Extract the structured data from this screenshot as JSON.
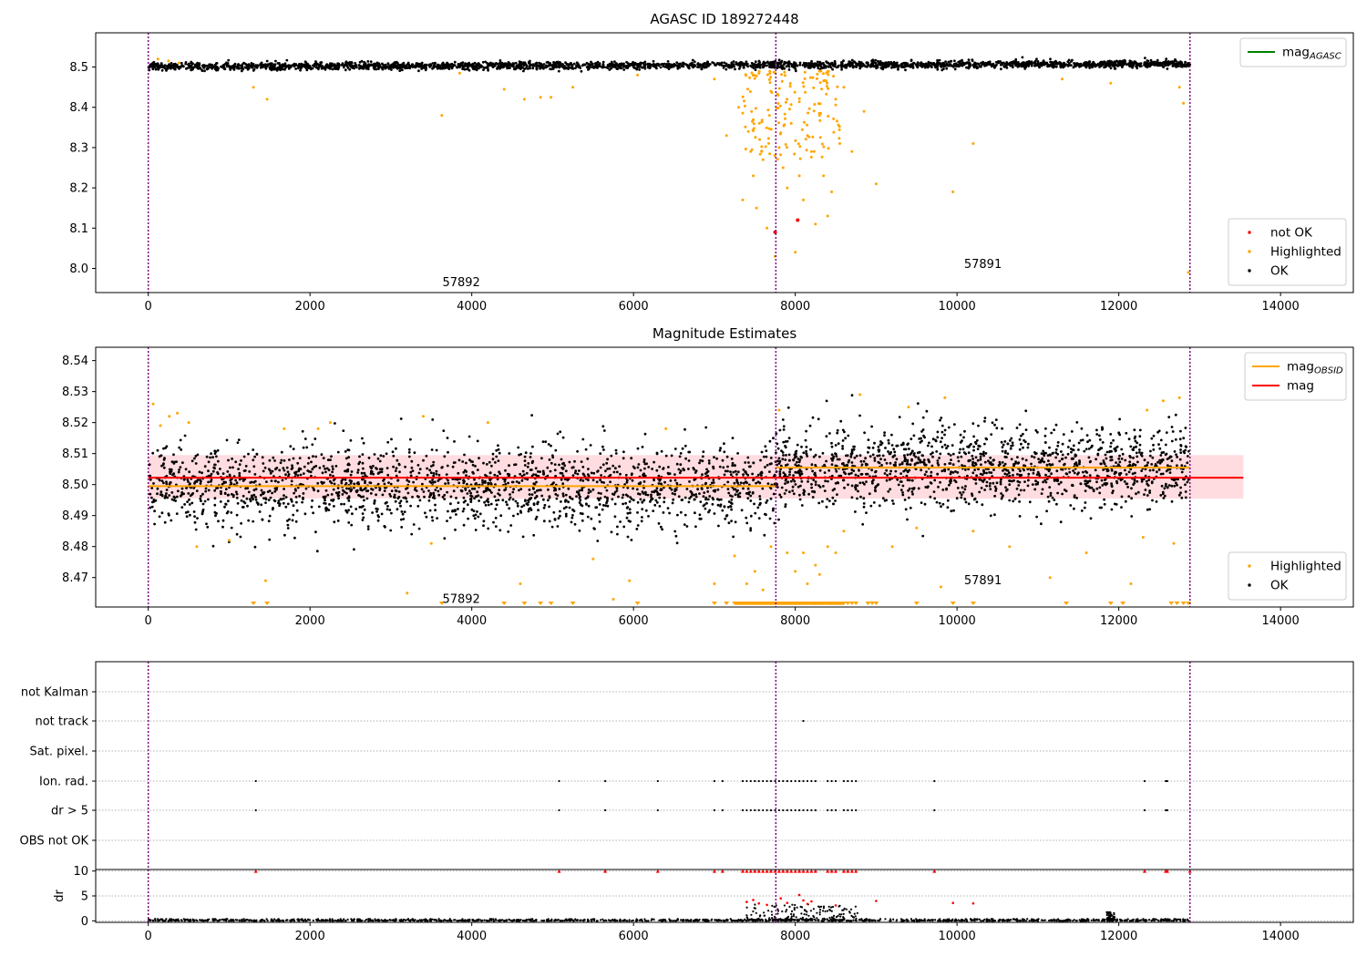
{
  "figure": {
    "colors": {
      "ok": "#000000",
      "highlighted": "#ffa500",
      "not_ok": "#ff0000",
      "agasc_line": "#008000",
      "obsid_line": "#ffa500",
      "mag_line": "#ff0000",
      "mag_band": "#ffc0c6",
      "obs_boundary": "#800080",
      "grid": "#b0b0b0"
    }
  },
  "chart_data": [
    {
      "id": "top",
      "type": "scatter",
      "title": "AGASC ID 189272448",
      "xlim": [
        -650,
        14900
      ],
      "ylim": [
        7.94,
        8.585
      ],
      "xticks": [
        0,
        2000,
        4000,
        6000,
        8000,
        10000,
        12000,
        14000
      ],
      "xtick_labels": [
        "0",
        "2000",
        "4000",
        "6000",
        "8000",
        "10000",
        "12000",
        "14000"
      ],
      "yticks": [
        8.0,
        8.1,
        8.2,
        8.3,
        8.4,
        8.5
      ],
      "ytick_labels": [
        "8.0",
        "8.1",
        "8.2",
        "8.3",
        "8.4",
        "8.5"
      ],
      "obs_boundaries": [
        0,
        7760,
        12880
      ],
      "obs_labels": [
        {
          "text": "57892",
          "x": 3870,
          "y": 7.965
        },
        {
          "text": "57891",
          "x": 10320,
          "y": 8.01
        }
      ],
      "lines": [],
      "series": [
        {
          "name": "OK",
          "kind": "ok_band",
          "x_range": [
            0,
            12880
          ],
          "center": [
            8.501,
            8.508
          ],
          "spread": 0.009
        },
        {
          "name": "Highlighted",
          "kind": "highlighted",
          "points": [
            [
              120,
              8.52
            ],
            [
              250,
              8.515
            ],
            [
              380,
              8.51
            ],
            [
              1300,
              8.45
            ],
            [
              1470,
              8.42
            ],
            [
              3630,
              8.38
            ],
            [
              3850,
              8.485
            ],
            [
              4400,
              8.445
            ],
            [
              4650,
              8.42
            ],
            [
              4850,
              8.425
            ],
            [
              4980,
              8.425
            ],
            [
              5250,
              8.45
            ],
            [
              6050,
              8.48
            ],
            [
              7000,
              8.47
            ],
            [
              7150,
              8.33
            ],
            [
              7300,
              8.4
            ],
            [
              7350,
              8.17
            ],
            [
              7420,
              8.34
            ],
            [
              7450,
              8.29
            ],
            [
              7480,
              8.23
            ],
            [
              7520,
              8.15
            ],
            [
              7560,
              8.32
            ],
            [
              7600,
              8.27
            ],
            [
              7650,
              8.1
            ],
            [
              7680,
              8.38
            ],
            [
              7700,
              8.44
            ],
            [
              7750,
              8.03
            ],
            [
              7800,
              8.3
            ],
            [
              7850,
              8.25
            ],
            [
              7900,
              8.2
            ],
            [
              7950,
              8.36
            ],
            [
              8000,
              8.04
            ],
            [
              8050,
              8.23
            ],
            [
              8100,
              8.17
            ],
            [
              8150,
              8.33
            ],
            [
              8200,
              8.29
            ],
            [
              8250,
              8.11
            ],
            [
              8300,
              8.38
            ],
            [
              8350,
              8.23
            ],
            [
              8400,
              8.13
            ],
            [
              8450,
              8.19
            ],
            [
              8500,
              8.42
            ],
            [
              8550,
              8.31
            ],
            [
              8600,
              8.45
            ],
            [
              8700,
              8.29
            ],
            [
              8850,
              8.39
            ],
            [
              9000,
              8.21
            ],
            [
              9950,
              8.19
            ],
            [
              10200,
              8.31
            ],
            [
              11300,
              8.47
            ],
            [
              11900,
              8.46
            ],
            [
              12750,
              8.45
            ],
            [
              12800,
              8.41
            ],
            [
              12860,
              7.99
            ]
          ],
          "cluster": {
            "x_range": [
              7350,
              8550
            ],
            "y_range": [
              8.27,
              8.49
            ],
            "count": 150
          }
        },
        {
          "name": "not OK",
          "kind": "not_ok",
          "points": [
            [
              7750,
              8.09
            ],
            [
              8030,
              8.12
            ]
          ]
        }
      ],
      "legends": [
        {
          "position": "top-right",
          "entries": [
            {
              "label": "mag",
              "sub": "AGASC",
              "marker": "line",
              "color_key": "agasc_line"
            }
          ]
        },
        {
          "position": "lower-right",
          "entries": [
            {
              "label": "not OK",
              "marker": "dot",
              "color_key": "not_ok"
            },
            {
              "label": "Highlighted",
              "marker": "dot",
              "color_key": "highlighted"
            },
            {
              "label": "OK",
              "marker": "dot",
              "color_key": "ok"
            }
          ]
        }
      ]
    },
    {
      "id": "middle",
      "type": "scatter",
      "title": "Magnitude Estimates",
      "xlim": [
        -650,
        14900
      ],
      "ylim": [
        8.4605,
        8.5443
      ],
      "xticks": [
        0,
        2000,
        4000,
        6000,
        8000,
        10000,
        12000,
        14000
      ],
      "xtick_labels": [
        "0",
        "2000",
        "4000",
        "6000",
        "8000",
        "10000",
        "12000",
        "14000"
      ],
      "yticks": [
        8.47,
        8.48,
        8.49,
        8.5,
        8.51,
        8.52,
        8.53,
        8.54
      ],
      "ytick_labels": [
        "8.47",
        "8.48",
        "8.49",
        "8.50",
        "8.51",
        "8.52",
        "8.53",
        "8.54"
      ],
      "obs_boundaries": [
        0,
        7760,
        12880
      ],
      "obs_labels": [
        {
          "text": "57892",
          "x": 3870,
          "y": 8.463
        },
        {
          "text": "57891",
          "x": 10320,
          "y": 8.469
        }
      ],
      "band": {
        "x_range": [
          0,
          13540
        ],
        "y_range": [
          8.4955,
          8.5095
        ],
        "color_key": "mag_band"
      },
      "lines": [
        {
          "name": "mag_OBSID 57892",
          "x_range": [
            0,
            7760
          ],
          "y": 8.4995,
          "color_key": "obsid_line"
        },
        {
          "name": "mag_OBSID 57891",
          "x_range": [
            7760,
            12880
          ],
          "y": 8.5055,
          "color_key": "obsid_line"
        },
        {
          "name": "mag",
          "x_range": [
            0,
            13540
          ],
          "y": 8.5022,
          "color_key": "mag_line"
        }
      ],
      "series": [
        {
          "name": "OK",
          "kind": "ok_scatter",
          "segments": [
            {
              "x_range": [
                0,
                7760
              ],
              "center": 8.4995,
              "spread": 0.0065,
              "count": 1900
            },
            {
              "x_range": [
                7760,
                12880
              ],
              "center": 8.5055,
              "spread": 0.0065,
              "count": 1400
            }
          ]
        },
        {
          "name": "Highlighted",
          "kind": "highlighted",
          "points": [
            [
              60,
              8.526
            ],
            [
              150,
              8.519
            ],
            [
              260,
              8.522
            ],
            [
              360,
              8.523
            ],
            [
              500,
              8.52
            ],
            [
              600,
              8.48
            ],
            [
              1000,
              8.482
            ],
            [
              1450,
              8.469
            ],
            [
              1680,
              8.518
            ],
            [
              2100,
              8.518
            ],
            [
              2250,
              8.52
            ],
            [
              3200,
              8.465
            ],
            [
              3400,
              8.522
            ],
            [
              3500,
              8.481
            ],
            [
              4200,
              8.52
            ],
            [
              4600,
              8.468
            ],
            [
              5500,
              8.476
            ],
            [
              5750,
              8.463
            ],
            [
              5950,
              8.469
            ],
            [
              6400,
              8.518
            ],
            [
              7000,
              8.468
            ],
            [
              7250,
              8.477
            ],
            [
              7400,
              8.468
            ],
            [
              7500,
              8.472
            ],
            [
              7600,
              8.466
            ],
            [
              7700,
              8.48
            ],
            [
              7800,
              8.524
            ],
            [
              7900,
              8.478
            ],
            [
              8000,
              8.472
            ],
            [
              8100,
              8.478
            ],
            [
              8150,
              8.468
            ],
            [
              8250,
              8.474
            ],
            [
              8300,
              8.471
            ],
            [
              8400,
              8.48
            ],
            [
              8500,
              8.478
            ],
            [
              8600,
              8.485
            ],
            [
              8800,
              8.529
            ],
            [
              9200,
              8.48
            ],
            [
              9400,
              8.525
            ],
            [
              9500,
              8.486
            ],
            [
              9800,
              8.467
            ],
            [
              9850,
              8.528
            ],
            [
              10200,
              8.485
            ],
            [
              10650,
              8.48
            ],
            [
              11150,
              8.47
            ],
            [
              11600,
              8.478
            ],
            [
              12150,
              8.468
            ],
            [
              12300,
              8.483
            ],
            [
              12350,
              8.524
            ],
            [
              12550,
              8.527
            ],
            [
              12680,
              8.481
            ],
            [
              12750,
              8.528
            ]
          ],
          "clipped_x": [
            1300,
            1470,
            3630,
            4400,
            4650,
            4850,
            4980,
            5250,
            6050,
            7000,
            7150,
            7300,
            7350,
            7400,
            7450,
            7500,
            7550,
            7600,
            7650,
            7700,
            7750,
            7800,
            7850,
            7900,
            7950,
            8000,
            8050,
            8100,
            8150,
            8200,
            8250,
            8300,
            8350,
            8400,
            8450,
            8500,
            8550,
            8600,
            8650,
            8700,
            8750,
            8900,
            8950,
            9000,
            9500,
            9950,
            10200,
            11350,
            11900,
            12050,
            12650,
            12720,
            12800,
            12860
          ]
        }
      ],
      "legends": [
        {
          "position": "top-right",
          "entries": [
            {
              "label": "mag",
              "sub": "OBSID",
              "marker": "line",
              "color_key": "obsid_line"
            },
            {
              "label": "mag",
              "marker": "line",
              "color_key": "mag_line"
            }
          ]
        },
        {
          "position": "lower-right",
          "entries": [
            {
              "label": "Highlighted",
              "marker": "dot",
              "color_key": "highlighted"
            },
            {
              "label": "OK",
              "marker": "dot",
              "color_key": "ok"
            }
          ]
        }
      ]
    },
    {
      "id": "flags",
      "type": "scatter",
      "xlim": [
        -650,
        14900
      ],
      "categories": [
        "not Kalman",
        "not track",
        "Sat. pixel.",
        "Ion. rad.",
        "dr > 5",
        "OBS not OK"
      ],
      "obs_boundaries": [
        0,
        7760,
        12880
      ],
      "series": [
        {
          "name": "not track",
          "x": [
            8100
          ]
        },
        {
          "name": "Ion. rad.",
          "x": [
            1330,
            5080,
            5650,
            6300,
            7000,
            7100,
            7350,
            7400,
            7450,
            7500,
            7550,
            7600,
            7650,
            7700,
            7750,
            7800,
            7850,
            7900,
            7950,
            8000,
            8050,
            8100,
            8150,
            8200,
            8250,
            8400,
            8450,
            8500,
            8600,
            8650,
            8700,
            8750,
            9720,
            12320,
            12580,
            12600
          ]
        },
        {
          "name": "dr > 5",
          "x": [
            1330,
            5080,
            5650,
            6300,
            7000,
            7100,
            7350,
            7400,
            7450,
            7500,
            7550,
            7600,
            7650,
            7700,
            7750,
            7800,
            7850,
            7900,
            7950,
            8000,
            8050,
            8100,
            8150,
            8200,
            8250,
            8400,
            8450,
            8500,
            8600,
            8650,
            8700,
            8750,
            9720,
            12320,
            12580,
            12600
          ]
        }
      ]
    },
    {
      "id": "dr",
      "type": "scatter",
      "xlim": [
        -650,
        14900
      ],
      "ylim": [
        -0.3,
        10.3
      ],
      "ylabel": "dr",
      "yticks": [
        0,
        5,
        10
      ],
      "ytick_labels": [
        "0",
        "5",
        "10"
      ],
      "xticks": [
        0,
        2000,
        4000,
        6000,
        8000,
        10000,
        12000,
        14000
      ],
      "xtick_labels": [
        "0",
        "2000",
        "4000",
        "6000",
        "8000",
        "10000",
        "12000",
        "14000"
      ],
      "obs_boundaries": [
        0,
        7760,
        12880
      ],
      "series": [
        {
          "name": "ok",
          "kind": "base",
          "x_range": [
            0,
            12880
          ],
          "y_range": [
            0,
            0.4
          ],
          "count": 1300
        },
        {
          "name": "ok",
          "kind": "cluster",
          "x_range": [
            7400,
            8800
          ],
          "y_range": [
            0.2,
            3.5
          ],
          "count": 160
        },
        {
          "name": "ok",
          "kind": "cluster",
          "x_range": [
            11850,
            11950
          ],
          "y_range": [
            0.3,
            1.8
          ],
          "count": 40
        },
        {
          "name": "not OK",
          "kind": "saturated",
          "y": 10,
          "x": [
            1330,
            5080,
            5650,
            6300,
            7000,
            7100,
            7350,
            7400,
            7450,
            7500,
            7550,
            7600,
            7650,
            7700,
            7750,
            7800,
            7850,
            7900,
            7950,
            8000,
            8050,
            8100,
            8150,
            8200,
            8250,
            8400,
            8450,
            8500,
            8600,
            8650,
            8700,
            8750,
            9720,
            12320,
            12580,
            12600,
            12880
          ]
        },
        {
          "name": "not OK",
          "kind": "points",
          "points": [
            [
              7400,
              3.8
            ],
            [
              7480,
              4.2
            ],
            [
              7550,
              3.5
            ],
            [
              7650,
              3.2
            ],
            [
              7820,
              4.5
            ],
            [
              7900,
              3.6
            ],
            [
              8050,
              5.2
            ],
            [
              8100,
              4.1
            ],
            [
              8150,
              3.4
            ],
            [
              8200,
              3.9
            ],
            [
              8500,
              3.1
            ],
            [
              9000,
              4.0
            ],
            [
              9950,
              3.6
            ],
            [
              10200,
              3.5
            ]
          ]
        }
      ]
    }
  ]
}
